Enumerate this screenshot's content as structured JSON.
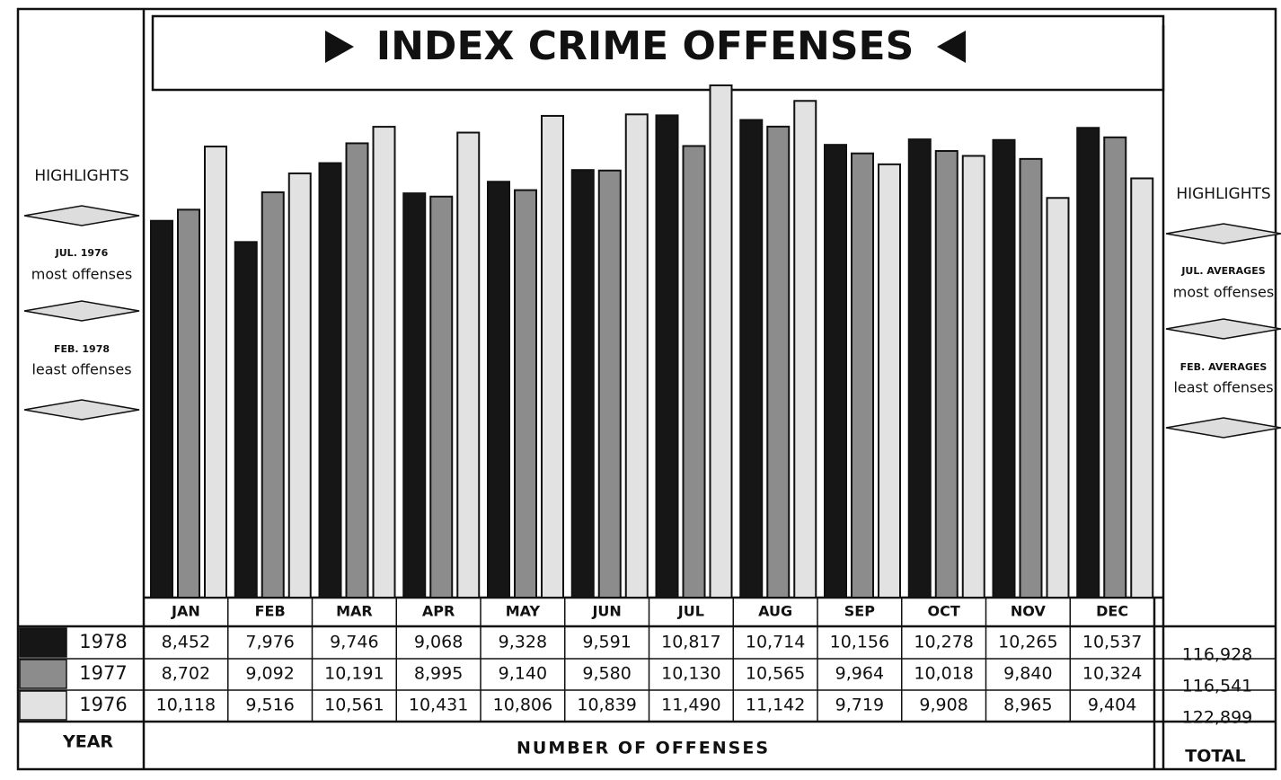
{
  "chart_data": {
    "type": "bar",
    "title": "INDEX CRIME OFFENSES",
    "categories": [
      "JAN",
      "FEB",
      "MAR",
      "APR",
      "MAY",
      "JUN",
      "JUL",
      "AUG",
      "SEP",
      "OCT",
      "NOV",
      "DEC"
    ],
    "series": [
      {
        "name": "1978",
        "color": "#161616",
        "values": [
          8452,
          7976,
          9746,
          9068,
          9328,
          9591,
          10817,
          10714,
          10156,
          10278,
          10265,
          10537
        ],
        "value_labels": [
          "8,452",
          "7,976",
          "9,746",
          "9,068",
          "9,328",
          "9,591",
          "10,817",
          "10,714",
          "10,156",
          "10,278",
          "10,265",
          "10,537"
        ],
        "total": 116928,
        "total_label": "116,928"
      },
      {
        "name": "1977",
        "color": "#8c8c8c",
        "values": [
          8702,
          9092,
          10191,
          8995,
          9140,
          9580,
          10130,
          10565,
          9964,
          10018,
          9840,
          10324
        ],
        "value_labels": [
          "8,702",
          "9,092",
          "10,191",
          "8,995",
          "9,140",
          "9,580",
          "10,130",
          "10,565",
          "9,964",
          "10,018",
          "9,840",
          "10,324"
        ],
        "total": 116541,
        "total_label": "116,541"
      },
      {
        "name": "1976",
        "color": "#e2e2e2",
        "values": [
          10118,
          9516,
          10561,
          10431,
          10806,
          10839,
          11490,
          11142,
          9719,
          9908,
          8965,
          9404
        ],
        "value_labels": [
          "10,118",
          "9,516",
          "10,561",
          "10,431",
          "10,806",
          "10,839",
          "11,490",
          "11,142",
          "9,719",
          "9,908",
          "8,965",
          "9,404"
        ],
        "total": 122899,
        "total_label": "122,899"
      }
    ],
    "x_label": "NUMBER OF OFFENSES",
    "year_label": "YEAR",
    "total_heading": "TOTAL",
    "highlights": [
      {
        "heading": "HIGHLIGHTS",
        "most_date": "JUL. 1976",
        "most_text": "most offenses",
        "least_date": "FEB. 1978",
        "least_text": "least offenses"
      },
      {
        "heading": "HIGHLIGHTS",
        "most_date": "JUL. AVERAGES",
        "most_text": "most offenses",
        "least_date": "FEB. AVERAGES",
        "least_text": "least offenses"
      }
    ]
  }
}
